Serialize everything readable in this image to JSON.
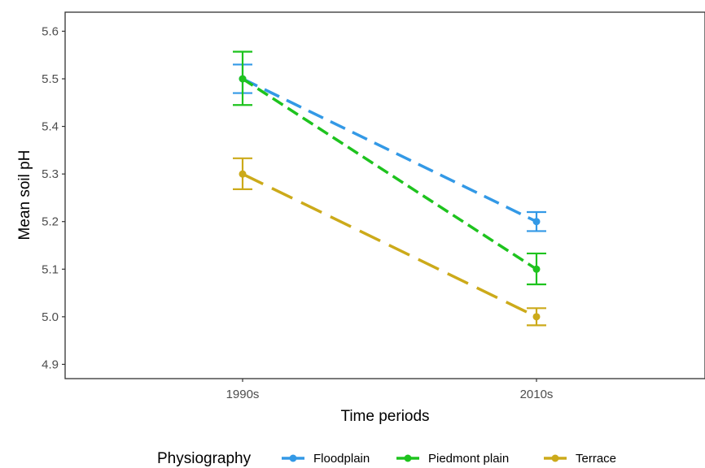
{
  "chart_data": {
    "type": "line",
    "xlabel": "Time periods",
    "ylabel": "Mean soil pH",
    "categories": [
      "1990s",
      "2010s"
    ],
    "ylim": [
      4.87,
      5.64
    ],
    "yticks": [
      "4.9",
      "5.0",
      "5.1",
      "5.2",
      "5.3",
      "5.4",
      "5.5",
      "5.6"
    ],
    "grid": false,
    "legend_title": "Physiography",
    "legend_position": "bottom",
    "series": [
      {
        "name": "Floodplain",
        "color": "#3399e6",
        "values": [
          5.5,
          5.2
        ],
        "err_low": [
          5.47,
          5.18
        ],
        "err_high": [
          5.53,
          5.22
        ]
      },
      {
        "name": "Piedmont plain",
        "color": "#1ec31e",
        "values": [
          5.5,
          5.1
        ],
        "err_low": [
          5.445,
          5.068
        ],
        "err_high": [
          5.557,
          5.133
        ]
      },
      {
        "name": "Terrace",
        "color": "#ccaa1a",
        "values": [
          5.3,
          5.0
        ],
        "err_low": [
          5.268,
          4.982
        ],
        "err_high": [
          5.333,
          5.018
        ]
      }
    ]
  }
}
